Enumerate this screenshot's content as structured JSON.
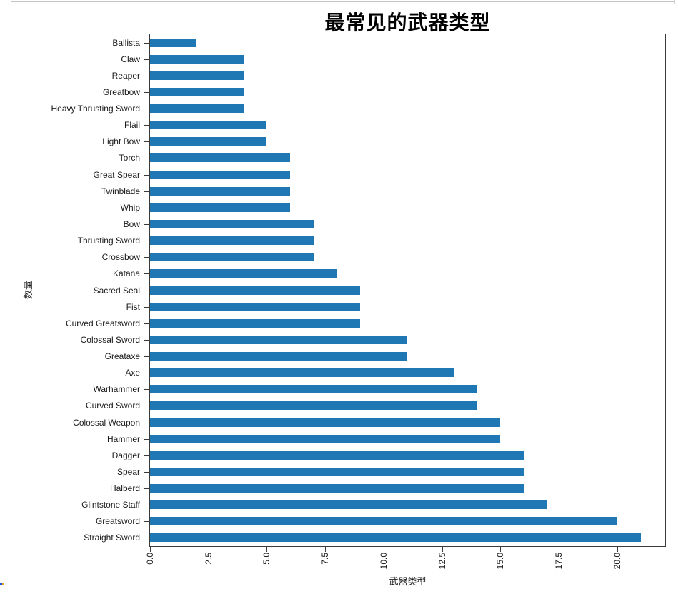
{
  "chart_data": {
    "type": "bar",
    "orientation": "horizontal",
    "title": "最常见的武器类型",
    "xlabel": "武器类型",
    "ylabel": "数量",
    "categories": [
      "Ballista",
      "Claw",
      "Reaper",
      "Greatbow",
      "Heavy Thrusting Sword",
      "Flail",
      "Light Bow",
      "Torch",
      "Great Spear",
      "Twinblade",
      "Whip",
      "Bow",
      "Thrusting Sword",
      "Crossbow",
      "Katana",
      "Sacred Seal",
      "Fist",
      "Curved Greatsword",
      "Colossal Sword",
      "Greataxe",
      "Axe",
      "Warhammer",
      "Curved Sword",
      "Colossal Weapon",
      "Hammer",
      "Dagger",
      "Spear",
      "Halberd",
      "Glintstone Staff",
      "Greatsword",
      "Straight Sword"
    ],
    "values": [
      2,
      4,
      4,
      4,
      4,
      5,
      5,
      6,
      6,
      6,
      6,
      7,
      7,
      7,
      8,
      9,
      9,
      9,
      11,
      11,
      13,
      14,
      14,
      15,
      15,
      16,
      16,
      16,
      17,
      20,
      21
    ],
    "categories_order": "top-to-bottom",
    "x_ticks": [
      "0.0",
      "2.5",
      "5.0",
      "7.5",
      "10.0",
      "12.5",
      "15.0",
      "17.5",
      "20.0"
    ],
    "x_tick_values": [
      0,
      2.5,
      5,
      7.5,
      10,
      12.5,
      15,
      17.5,
      20
    ],
    "x_tick_rotation_deg": 90,
    "xlim": [
      0,
      22.05
    ],
    "grid": false,
    "legend": null,
    "bar_color": "#1f77b4",
    "spine_color": "#3a3a3a"
  }
}
